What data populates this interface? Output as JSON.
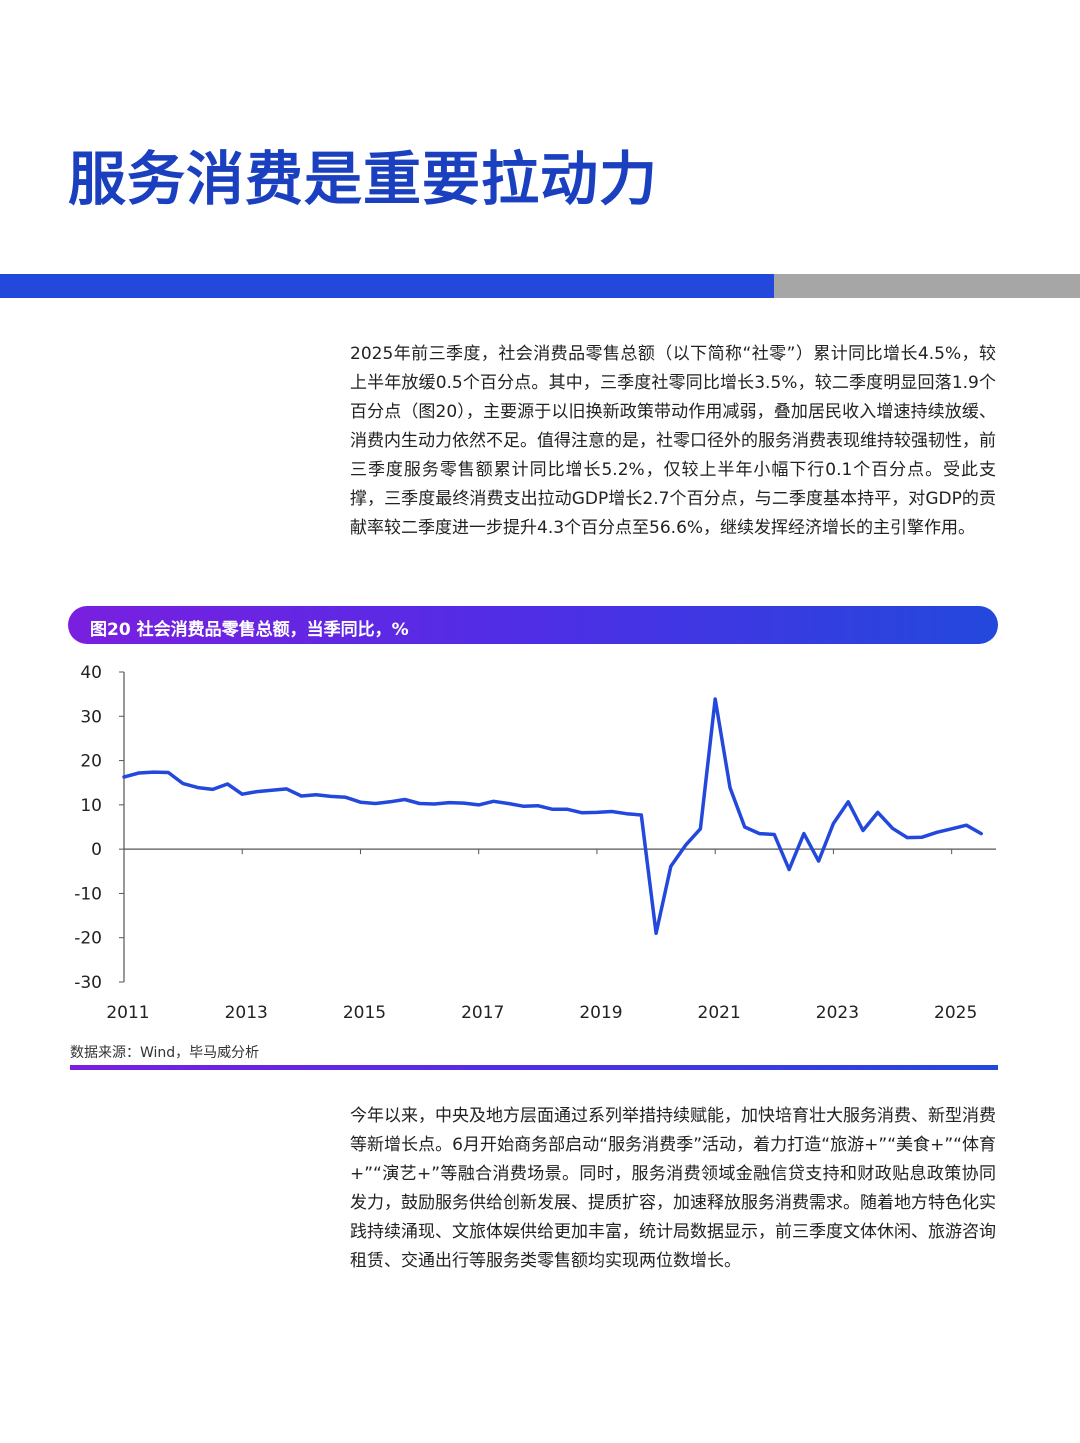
{
  "page": {
    "title": "服务消费是重要拉动力",
    "paragraph1": "2025年前三季度，社会消费品零售总额（以下简称“社零”）累计同比增长4.5%，较上半年放缓0.5个百分点。其中，三季度社零同比增长3.5%，较二季度明显回落1.9个百分点（图20），主要源于以旧换新政策带动作用减弱，叠加居民收入增速持续放缓、消费内生动力依然不足。值得注意的是，社零口径外的服务消费表现维持较强韧性，前三季度服务零售额累计同比增长5.2%，仅较上半年小幅下行0.1个百分点。受此支撑，三季度最终消费支出拉动GDP增长2.7个百分点，与二季度基本持平，对GDP的贡献率较二季度进一步提升4.3个百分点至56.6%，继续发挥经济增长的主引擎作用。",
    "paragraph2": "今年以来，中央及地方层面通过系列举措持续赋能，加快培育壮大服务消费、新型消费等新增长点。6月开始商务部启动“服务消费季”活动，着力打造“旅游+”“美食+”“体育+”“演艺+”等融合消费场景。同时，服务消费领域金融信贷支持和财政贴息政策协同发力，鼓励服务供给创新发展、提质扩容，加速释放服务消费需求。随着地方特色化实践持续涌现、文旅体娱供给更加丰富，统计局数据显示，前三季度文体休闲、旅游咨询租赁、交通出行等服务类零售额均实现两位数增长。",
    "figure_title": "图20 社会消费品零售总额，当季同比，%",
    "source": "数据来源：Wind，毕马威分析"
  },
  "colors": {
    "title": "#1a3fbf",
    "line": "#2348dc",
    "rule_blue": "#2348dc",
    "rule_gray": "#a6a6a6"
  },
  "chart_data": {
    "type": "line",
    "title": "图20 社会消费品零售总额，当季同比，%",
    "xlabel": "",
    "ylabel": "",
    "ylim": [
      -30,
      40
    ],
    "yticks": [
      40,
      30,
      20,
      10,
      0,
      -10,
      -20,
      -30
    ],
    "xlim": [
      2011.0,
      2025.75
    ],
    "xtick_labels": [
      "2011",
      "2013",
      "2015",
      "2017",
      "2019",
      "2021",
      "2023",
      "2025"
    ],
    "grid": false,
    "legend": "none",
    "x": [
      2011.0,
      2011.25,
      2011.5,
      2011.75,
      2012.0,
      2012.25,
      2012.5,
      2012.75,
      2013.0,
      2013.25,
      2013.5,
      2013.75,
      2014.0,
      2014.25,
      2014.5,
      2014.75,
      2015.0,
      2015.25,
      2015.5,
      2015.75,
      2016.0,
      2016.25,
      2016.5,
      2016.75,
      2017.0,
      2017.25,
      2017.5,
      2017.75,
      2018.0,
      2018.25,
      2018.5,
      2018.75,
      2019.0,
      2019.25,
      2019.5,
      2019.75,
      2020.0,
      2020.25,
      2020.5,
      2020.75,
      2021.0,
      2021.25,
      2021.5,
      2021.75,
      2022.0,
      2022.25,
      2022.5,
      2022.75,
      2023.0,
      2023.25,
      2023.5,
      2023.75,
      2024.0,
      2024.25,
      2024.5,
      2024.75,
      2025.0,
      2025.25,
      2025.5
    ],
    "values": [
      16.3,
      17.2,
      17.4,
      17.3,
      14.8,
      13.9,
      13.5,
      14.7,
      12.4,
      13.0,
      13.3,
      13.6,
      12.0,
      12.3,
      11.9,
      11.7,
      10.6,
      10.3,
      10.7,
      11.2,
      10.3,
      10.2,
      10.5,
      10.4,
      10.0,
      10.8,
      10.3,
      9.7,
      9.8,
      9.0,
      9.0,
      8.2,
      8.3,
      8.5,
      8.0,
      7.7,
      -19.0,
      -3.9,
      0.9,
      4.6,
      33.9,
      13.9,
      5.0,
      3.5,
      3.3,
      -4.6,
      3.5,
      -2.7,
      5.8,
      10.7,
      4.2,
      8.3,
      4.7,
      2.6,
      2.7,
      3.8,
      4.6,
      5.4,
      3.5
    ]
  }
}
